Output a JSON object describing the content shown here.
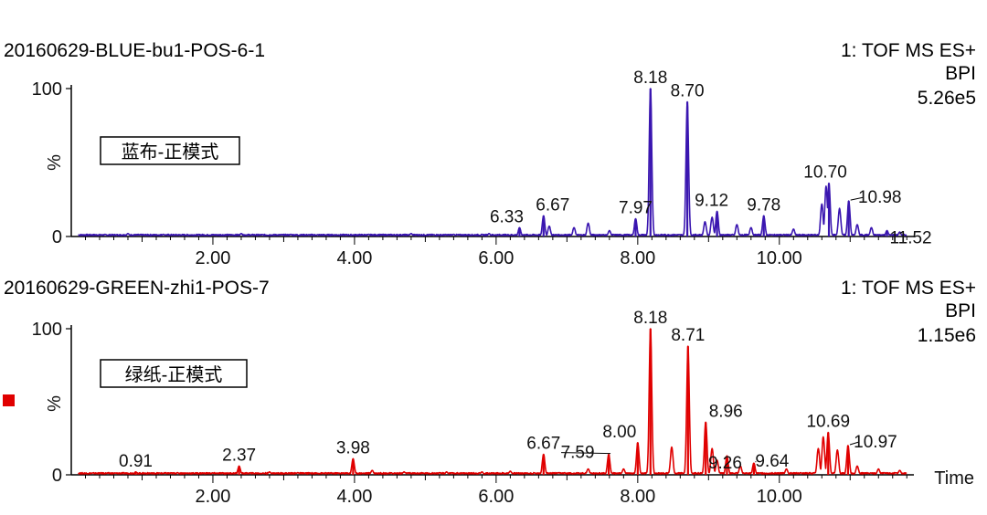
{
  "chart_data": [
    {
      "type": "line",
      "sample_name": "20160629-BLUE-bu1-POS-6-1",
      "function": "1: TOF MS ES+",
      "trace": "BPI",
      "intensity": "5.26e5",
      "ylabel": "%",
      "box_label": "蓝布-正模式",
      "color": "#3a16b0",
      "xlim": [
        0,
        11.9
      ],
      "ylim": [
        0,
        100
      ],
      "x_ticks": [
        {
          "value": 2,
          "label": "2.00"
        },
        {
          "value": 4,
          "label": "4.00"
        },
        {
          "value": 6,
          "label": "6.00"
        },
        {
          "value": 8,
          "label": "8.00"
        },
        {
          "value": 10,
          "label": "10.00"
        }
      ],
      "y_ticks": [
        {
          "value": 0,
          "label": "0"
        },
        {
          "value": 100,
          "label": "100"
        }
      ],
      "peaks": [
        {
          "rt": 6.33,
          "label": "6.33",
          "height": 6
        },
        {
          "rt": 6.67,
          "label": "6.67",
          "height": 14
        },
        {
          "rt": 7.97,
          "label": "7.97",
          "height": 12
        },
        {
          "rt": 8.18,
          "label": "8.18",
          "height": 100
        },
        {
          "rt": 8.7,
          "label": "8.70",
          "height": 91
        },
        {
          "rt": 9.12,
          "label": "9.12",
          "height": 17
        },
        {
          "rt": 9.78,
          "label": "9.78",
          "height": 14
        },
        {
          "rt": 10.7,
          "label": "10.70",
          "height": 36
        },
        {
          "rt": 10.98,
          "label": "10.98",
          "height": 24
        },
        {
          "rt": 11.52,
          "label": "11.52",
          "height": 4
        }
      ],
      "minor_peaks": [
        {
          "rt": 0.8,
          "height": 2
        },
        {
          "rt": 1.3,
          "height": 1.5
        },
        {
          "rt": 2.4,
          "height": 2
        },
        {
          "rt": 3.1,
          "height": 1.5
        },
        {
          "rt": 4.2,
          "height": 1.5
        },
        {
          "rt": 4.8,
          "height": 2
        },
        {
          "rt": 5.4,
          "height": 1.5
        },
        {
          "rt": 5.9,
          "height": 2
        },
        {
          "rt": 6.75,
          "height": 7
        },
        {
          "rt": 7.1,
          "height": 6
        },
        {
          "rt": 7.3,
          "height": 9
        },
        {
          "rt": 7.6,
          "height": 4
        },
        {
          "rt": 8.95,
          "height": 10
        },
        {
          "rt": 9.05,
          "height": 13
        },
        {
          "rt": 9.4,
          "height": 8
        },
        {
          "rt": 9.6,
          "height": 6
        },
        {
          "rt": 10.2,
          "height": 5
        },
        {
          "rt": 10.6,
          "height": 22
        },
        {
          "rt": 10.66,
          "height": 34
        },
        {
          "rt": 10.85,
          "height": 19
        },
        {
          "rt": 11.1,
          "height": 8
        },
        {
          "rt": 11.3,
          "height": 6
        },
        {
          "rt": 11.7,
          "height": 3
        }
      ]
    },
    {
      "type": "line",
      "sample_name": "20160629-GREEN-zhi1-POS-7",
      "function": "1: TOF MS ES+",
      "trace": "BPI",
      "intensity": "1.15e6",
      "ylabel": "%",
      "box_label": "绿纸-正模式",
      "color": "#e00000",
      "xlabel": "Time",
      "xlim": [
        0,
        11.9
      ],
      "ylim": [
        0,
        100
      ],
      "x_ticks": [
        {
          "value": 2,
          "label": "2.00"
        },
        {
          "value": 4,
          "label": "4.00"
        },
        {
          "value": 6,
          "label": "6.00"
        },
        {
          "value": 8,
          "label": "8.00"
        },
        {
          "value": 10,
          "label": "10.00"
        }
      ],
      "y_ticks": [
        {
          "value": 0,
          "label": "0"
        },
        {
          "value": 100,
          "label": "100"
        }
      ],
      "peaks": [
        {
          "rt": 0.91,
          "label": "0.91",
          "height": 2
        },
        {
          "rt": 2.37,
          "label": "2.37",
          "height": 6
        },
        {
          "rt": 3.98,
          "label": "3.98",
          "height": 11
        },
        {
          "rt": 6.67,
          "label": "6.67",
          "height": 14
        },
        {
          "rt": 7.59,
          "label": "7.59",
          "height": 14
        },
        {
          "rt": 8.0,
          "label": "8.00",
          "height": 22
        },
        {
          "rt": 8.18,
          "label": "8.18",
          "height": 100
        },
        {
          "rt": 8.71,
          "label": "8.71",
          "height": 88
        },
        {
          "rt": 8.96,
          "label": "8.96",
          "height": 36
        },
        {
          "rt": 9.26,
          "label": "9.26",
          "height": 13
        },
        {
          "rt": 9.64,
          "label": "9.64",
          "height": 8
        },
        {
          "rt": 10.69,
          "label": "10.69",
          "height": 29
        },
        {
          "rt": 10.97,
          "label": "10.97",
          "height": 20
        }
      ],
      "minor_peaks": [
        {
          "rt": 1.5,
          "height": 1.5
        },
        {
          "rt": 2.8,
          "height": 2
        },
        {
          "rt": 3.2,
          "height": 1.5
        },
        {
          "rt": 4.25,
          "height": 3
        },
        {
          "rt": 4.7,
          "height": 2
        },
        {
          "rt": 5.3,
          "height": 2
        },
        {
          "rt": 5.8,
          "height": 2
        },
        {
          "rt": 6.2,
          "height": 2.5
        },
        {
          "rt": 7.3,
          "height": 4
        },
        {
          "rt": 7.8,
          "height": 4
        },
        {
          "rt": 8.48,
          "height": 19
        },
        {
          "rt": 9.05,
          "height": 18
        },
        {
          "rt": 9.12,
          "height": 10
        },
        {
          "rt": 9.45,
          "height": 6
        },
        {
          "rt": 10.1,
          "height": 4
        },
        {
          "rt": 10.55,
          "height": 18
        },
        {
          "rt": 10.62,
          "height": 26
        },
        {
          "rt": 10.82,
          "height": 17
        },
        {
          "rt": 11.1,
          "height": 6
        },
        {
          "rt": 11.4,
          "height": 4
        },
        {
          "rt": 11.7,
          "height": 3
        }
      ]
    }
  ]
}
